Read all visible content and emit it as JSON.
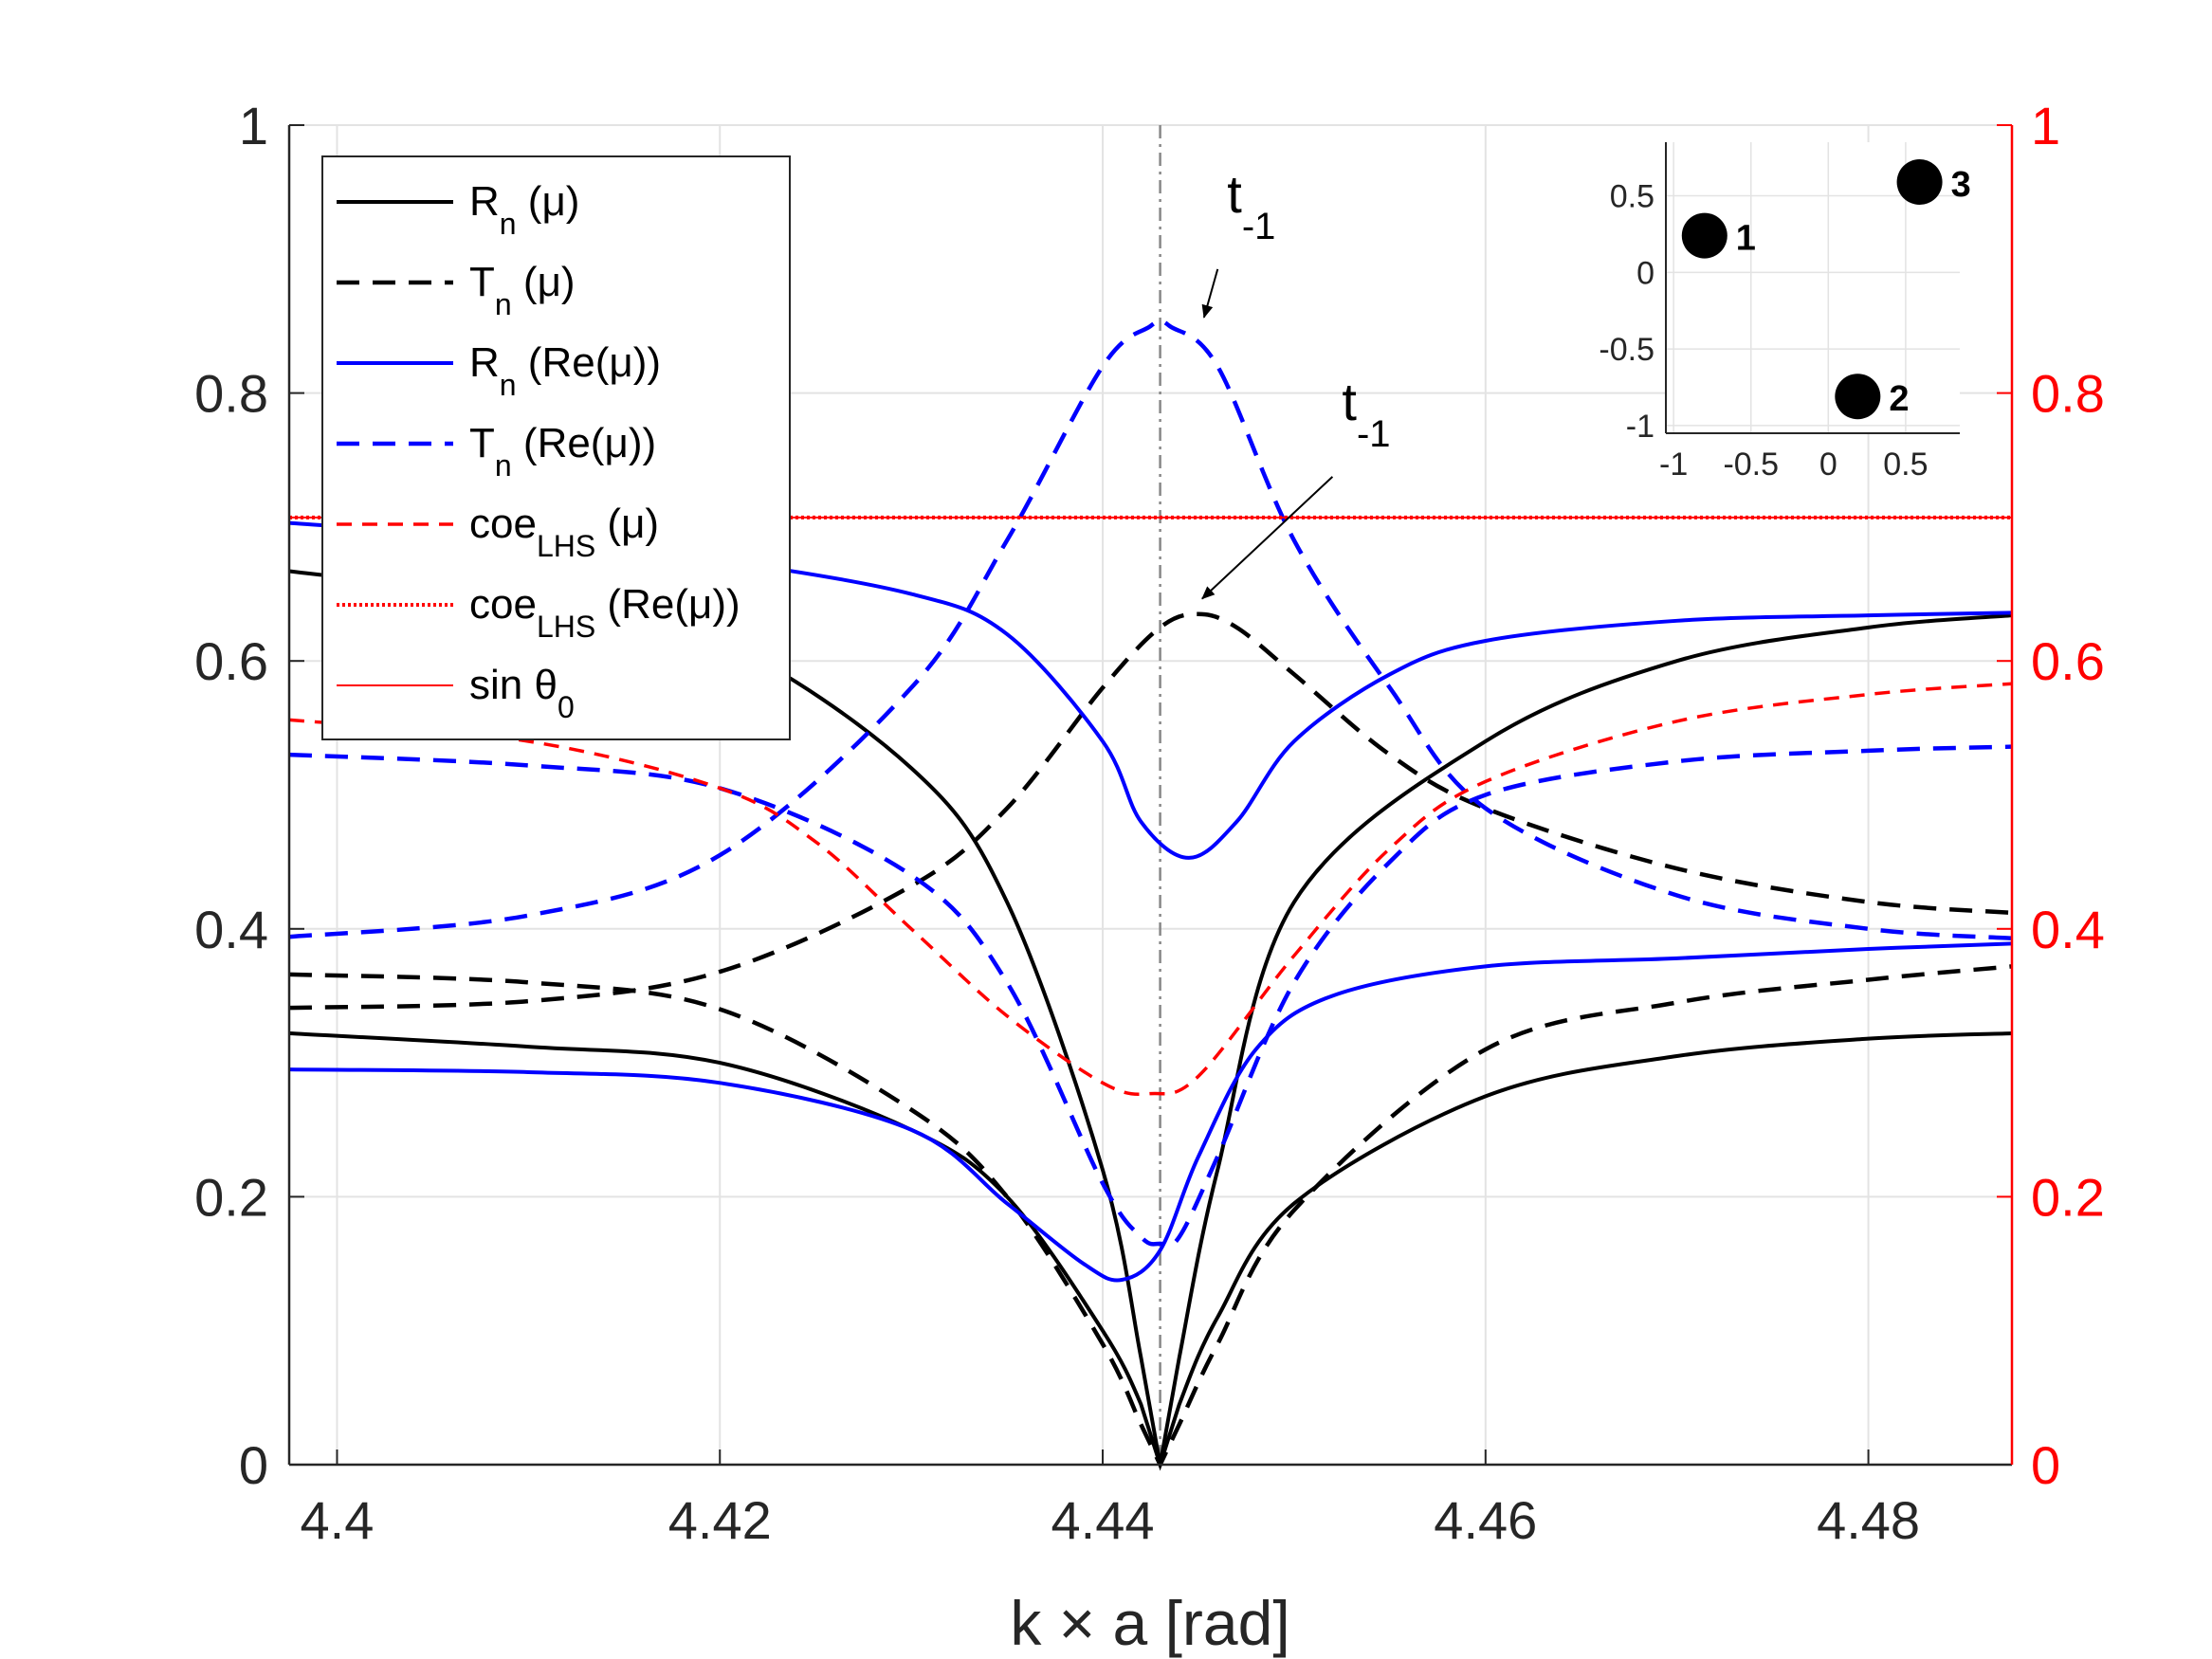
{
  "chart_data": [
    {
      "type": "line",
      "title": "",
      "xlabel": "k × a [rad]",
      "ylabel": "",
      "xlim": [
        4.3975,
        4.4875
      ],
      "ylim": [
        0,
        1
      ],
      "y2lim": [
        0,
        1
      ],
      "grid": true,
      "legend_position": "top-left",
      "x_ticks": [
        "4.4",
        "4.42",
        "4.44",
        "4.46",
        "4.48"
      ],
      "y_ticks": [
        "0",
        "0.2",
        "0.4",
        "0.6",
        "0.8",
        "1"
      ],
      "y2_ticks": [
        "0",
        "0.2",
        "0.4",
        "0.6",
        "0.8",
        "1"
      ],
      "resonance_x": 4.443,
      "series": [
        {
          "id": "Rn_mu_a",
          "legend": "R_n (μ)",
          "name": "R",
          "sub": "n",
          "arg": " (μ)",
          "color": "#000000",
          "style": "solid",
          "axis": "left",
          "x": [
            4.3975,
            4.41,
            4.42,
            4.43,
            4.435,
            4.44,
            4.442,
            4.443,
            4.444,
            4.446,
            4.45,
            4.46,
            4.47,
            4.48,
            4.4875
          ],
          "y": [
            0.667,
            0.645,
            0.615,
            0.52,
            0.42,
            0.22,
            0.08,
            0.0,
            0.08,
            0.22,
            0.42,
            0.54,
            0.6,
            0.625,
            0.634
          ]
        },
        {
          "id": "Rn_mu_b",
          "legend": "",
          "color": "#000000",
          "style": "solid",
          "axis": "left",
          "x": [
            4.3975,
            4.41,
            4.42,
            4.43,
            4.435,
            4.44,
            4.442,
            4.443,
            4.444,
            4.446,
            4.45,
            4.46,
            4.47,
            4.48,
            4.4875
          ],
          "y": [
            0.322,
            0.312,
            0.3,
            0.25,
            0.2,
            0.1,
            0.045,
            0.0,
            0.045,
            0.11,
            0.195,
            0.275,
            0.305,
            0.318,
            0.322
          ]
        },
        {
          "id": "Tn_mu_a",
          "legend": "T_n (μ)",
          "name": "T",
          "sub": "n",
          "arg": " (μ)",
          "color": "#000000",
          "style": "dashed",
          "axis": "left",
          "x": [
            4.3975,
            4.41,
            4.42,
            4.43,
            4.435,
            4.44,
            4.443,
            4.445,
            4.447,
            4.45,
            4.455,
            4.46,
            4.47,
            4.48,
            4.4875
          ],
          "y": [
            0.341,
            0.346,
            0.368,
            0.432,
            0.49,
            0.58,
            0.625,
            0.635,
            0.625,
            0.59,
            0.53,
            0.49,
            0.445,
            0.42,
            0.412
          ]
        },
        {
          "id": "Tn_mu_b",
          "legend": "",
          "color": "#000000",
          "style": "dashed",
          "axis": "left",
          "x": [
            4.3975,
            4.41,
            4.42,
            4.43,
            4.435,
            4.44,
            4.442,
            4.443,
            4.444,
            4.446,
            4.45,
            4.46,
            4.47,
            4.48,
            4.4875
          ],
          "y": [
            0.366,
            0.36,
            0.34,
            0.265,
            0.2,
            0.09,
            0.03,
            0.0,
            0.03,
            0.09,
            0.19,
            0.31,
            0.345,
            0.362,
            0.372
          ]
        },
        {
          "id": "Rn_re_a",
          "legend": "R_n (Re(μ))",
          "name": "R",
          "sub": "n",
          "arg": " (Re(μ))",
          "color": "#0000ff",
          "style": "solid",
          "axis": "left",
          "x": [
            4.3975,
            4.41,
            4.42,
            4.43,
            4.435,
            4.44,
            4.442,
            4.4445,
            4.447,
            4.45,
            4.455,
            4.46,
            4.47,
            4.48,
            4.4875
          ],
          "y": [
            0.703,
            0.69,
            0.675,
            0.65,
            0.62,
            0.54,
            0.48,
            0.453,
            0.48,
            0.54,
            0.59,
            0.615,
            0.63,
            0.634,
            0.636
          ]
        },
        {
          "id": "Rn_re_b",
          "legend": "",
          "color": "#0000ff",
          "style": "solid",
          "axis": "left",
          "x": [
            4.3975,
            4.41,
            4.42,
            4.43,
            4.435,
            4.439,
            4.441,
            4.443,
            4.445,
            4.448,
            4.452,
            4.46,
            4.47,
            4.48,
            4.4875
          ],
          "y": [
            0.295,
            0.293,
            0.285,
            0.25,
            0.195,
            0.15,
            0.138,
            0.16,
            0.23,
            0.31,
            0.35,
            0.372,
            0.378,
            0.385,
            0.389
          ]
        },
        {
          "id": "Tn_re_a",
          "legend": "T_n (Re(μ))",
          "name": "T",
          "sub": "n",
          "arg": " (Re(μ))",
          "color": "#0000ff",
          "style": "dashed",
          "axis": "left",
          "x": [
            4.3975,
            4.41,
            4.42,
            4.43,
            4.435,
            4.44,
            4.4425,
            4.443,
            4.4435,
            4.446,
            4.45,
            4.455,
            4.46,
            4.47,
            4.48,
            4.4875
          ],
          "y": [
            0.394,
            0.41,
            0.455,
            0.58,
            0.69,
            0.82,
            0.85,
            0.853,
            0.85,
            0.82,
            0.69,
            0.58,
            0.49,
            0.425,
            0.4,
            0.393
          ]
        },
        {
          "id": "Tn_re_b",
          "legend": "",
          "color": "#0000ff",
          "style": "dashed",
          "axis": "left",
          "x": [
            4.3975,
            4.41,
            4.42,
            4.43,
            4.435,
            4.44,
            4.442,
            4.443,
            4.444,
            4.446,
            4.45,
            4.455,
            4.46,
            4.47,
            4.48,
            4.4875
          ],
          "y": [
            0.53,
            0.522,
            0.505,
            0.44,
            0.36,
            0.21,
            0.17,
            0.165,
            0.17,
            0.23,
            0.36,
            0.45,
            0.5,
            0.525,
            0.533,
            0.536
          ]
        },
        {
          "id": "coe_mu",
          "legend": "coe_LHS (μ)",
          "name": "coe",
          "sub": "LHS",
          "arg": " (μ)",
          "color": "#ff0000",
          "style": "dashed-thin",
          "axis": "right",
          "x": [
            4.3975,
            4.41,
            4.42,
            4.425,
            4.43,
            4.435,
            4.44,
            4.4425,
            4.445,
            4.45,
            4.455,
            4.46,
            4.47,
            4.48,
            4.4875
          ],
          "y": [
            0.556,
            0.54,
            0.505,
            0.465,
            0.4,
            0.335,
            0.285,
            0.277,
            0.29,
            0.38,
            0.46,
            0.51,
            0.555,
            0.575,
            0.583
          ]
        },
        {
          "id": "coe_re",
          "legend": "coe_LHS (Re(μ))",
          "name": "coe",
          "sub": "LHS",
          "arg": " (Re(μ))",
          "color": "#ff0000",
          "style": "dotted",
          "axis": "right",
          "x": [
            4.3975,
            4.4875
          ],
          "y": [
            0.7071,
            0.7071
          ]
        },
        {
          "id": "sin_theta",
          "legend": "sin θ_0",
          "name": "sin θ",
          "sub": "0",
          "arg": "",
          "color": "#ff0000",
          "style": "solid-thin",
          "axis": "right",
          "x": [
            4.3975,
            4.4875
          ],
          "y": [
            0.7071,
            0.7071
          ]
        }
      ],
      "annotations": [
        {
          "text": "t",
          "sub": "-1",
          "label_x": 4.4465,
          "label_y": 0.935,
          "arrow_to_x": 4.4446,
          "arrow_to_y": 0.855
        },
        {
          "text": "t",
          "sub": "-1",
          "label_x": 4.4525,
          "label_y": 0.78,
          "arrow_to_x": 4.4445,
          "arrow_to_y": 0.645
        }
      ]
    },
    {
      "type": "scatter",
      "title": "inset",
      "xlim": [
        -1.05,
        0.85
      ],
      "ylim": [
        -1.05,
        0.85
      ],
      "grid": true,
      "x_ticks": [
        "-1",
        "-0.5",
        "0",
        "0.5"
      ],
      "x_tick_values": [
        -1,
        -0.5,
        0,
        0.5
      ],
      "y_ticks": [
        "-1",
        "-0.5",
        "0",
        "0.5"
      ],
      "y_tick_values": [
        -1,
        -0.5,
        0,
        0.5
      ],
      "points": [
        {
          "label": "1",
          "x": -0.8,
          "y": 0.24
        },
        {
          "label": "2",
          "x": 0.19,
          "y": -0.81
        },
        {
          "label": "3",
          "x": 0.59,
          "y": 0.59
        }
      ]
    }
  ]
}
